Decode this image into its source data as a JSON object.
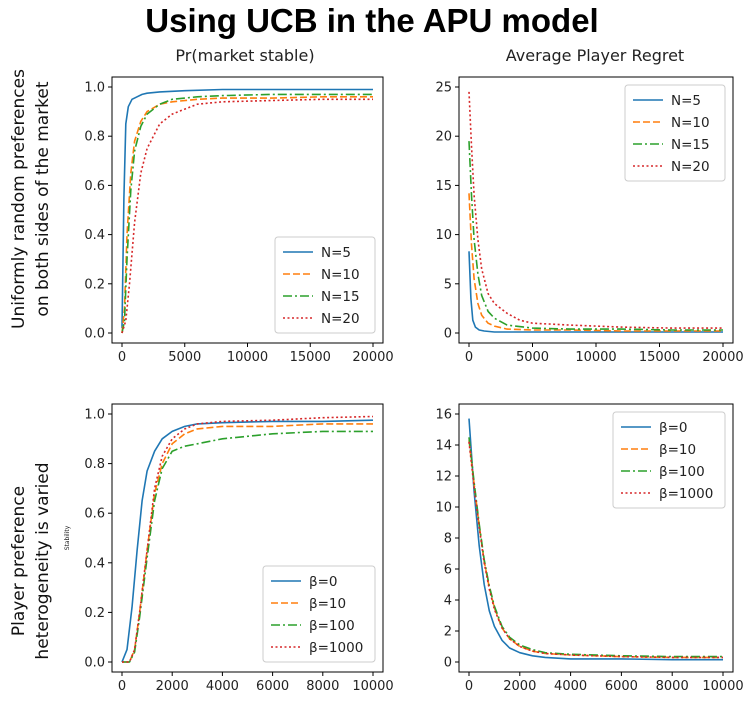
{
  "title": "Using UCB in the APU model",
  "columns": [
    "Pr(market stable)",
    "Average Player Regret"
  ],
  "rows": [
    {
      "line1": "Uniformly random preferences",
      "line2": "on both sides of the market"
    },
    {
      "line1": "Player preference",
      "line2": "heterogeneity is varied"
    }
  ],
  "colors": {
    "s1": "#1f77b4",
    "s2": "#ff7f0e",
    "s3": "#2ca02c",
    "s4": "#d62728"
  },
  "chart_data": [
    {
      "type": "line",
      "title": "Pr(market stable)",
      "xlabel": "",
      "ylabel": "",
      "xlim": [
        0,
        20000
      ],
      "ylim": [
        0,
        1
      ],
      "xticks": [
        "0",
        "5000",
        "10000",
        "15000",
        "20000"
      ],
      "yticks": [
        "0.0",
        "0.2",
        "0.4",
        "0.6",
        "0.8",
        "1.0"
      ],
      "legend_position": "bottom-right",
      "series": [
        {
          "name": "N=5",
          "x": [
            0,
            150,
            300,
            500,
            800,
            1200,
            1600,
            2000,
            3000,
            5000,
            8000,
            12000,
            16000,
            20000
          ],
          "values": [
            0.02,
            0.55,
            0.85,
            0.92,
            0.95,
            0.96,
            0.97,
            0.975,
            0.98,
            0.985,
            0.99,
            0.99,
            0.99,
            0.99
          ]
        },
        {
          "name": "N=10",
          "x": [
            0,
            200,
            400,
            700,
            1000,
            1500,
            2000,
            3000,
            4000,
            6000,
            8000,
            12000,
            16000,
            20000
          ],
          "values": [
            0.0,
            0.1,
            0.4,
            0.65,
            0.78,
            0.86,
            0.9,
            0.93,
            0.94,
            0.95,
            0.955,
            0.955,
            0.96,
            0.96
          ]
        },
        {
          "name": "N=15",
          "x": [
            0,
            200,
            400,
            700,
            1000,
            1500,
            2000,
            3000,
            4000,
            6000,
            8000,
            12000,
            16000,
            20000
          ],
          "values": [
            0.0,
            0.05,
            0.3,
            0.58,
            0.74,
            0.84,
            0.89,
            0.93,
            0.95,
            0.96,
            0.965,
            0.97,
            0.97,
            0.97
          ]
        },
        {
          "name": "N=20",
          "x": [
            0,
            300,
            600,
            1000,
            1500,
            2000,
            3000,
            4000,
            5000,
            6000,
            8000,
            12000,
            16000,
            20000
          ],
          "values": [
            0.0,
            0.05,
            0.2,
            0.45,
            0.65,
            0.75,
            0.85,
            0.89,
            0.91,
            0.93,
            0.94,
            0.945,
            0.95,
            0.95
          ]
        }
      ]
    },
    {
      "type": "line",
      "title": "Average Player Regret",
      "xlabel": "",
      "ylabel": "",
      "xlim": [
        0,
        20000
      ],
      "ylim": [
        0,
        25
      ],
      "xticks": [
        "0",
        "5000",
        "10000",
        "15000",
        "20000"
      ],
      "yticks": [
        "0",
        "5",
        "10",
        "15",
        "20",
        "25"
      ],
      "legend_position": "top-right",
      "series": [
        {
          "name": "N=5",
          "x": [
            0,
            150,
            300,
            500,
            800,
            1200,
            2000,
            4000,
            8000,
            12000,
            16000,
            20000
          ],
          "values": [
            8.3,
            3.5,
            1.3,
            0.6,
            0.3,
            0.2,
            0.1,
            0.1,
            0.1,
            0.1,
            0.1,
            0.1
          ]
        },
        {
          "name": "N=10",
          "x": [
            0,
            200,
            400,
            700,
            1000,
            1500,
            2000,
            3000,
            5000,
            8000,
            12000,
            16000,
            20000
          ],
          "values": [
            14.2,
            9.0,
            5.5,
            3.0,
            1.8,
            1.0,
            0.7,
            0.4,
            0.3,
            0.3,
            0.2,
            0.2,
            0.2
          ]
        },
        {
          "name": "N=15",
          "x": [
            0,
            200,
            400,
            700,
            1000,
            1500,
            2000,
            3000,
            5000,
            8000,
            12000,
            16000,
            20000
          ],
          "values": [
            19.5,
            14.0,
            9.5,
            6.0,
            3.8,
            2.2,
            1.5,
            0.8,
            0.5,
            0.4,
            0.4,
            0.3,
            0.3
          ]
        },
        {
          "name": "N=20",
          "x": [
            0,
            200,
            400,
            700,
            1000,
            1500,
            2000,
            3000,
            4000,
            5000,
            8000,
            12000,
            16000,
            20000
          ],
          "values": [
            24.5,
            19.0,
            14.0,
            9.5,
            6.5,
            4.0,
            3.0,
            2.0,
            1.3,
            1.0,
            0.8,
            0.6,
            0.5,
            0.5
          ]
        }
      ]
    },
    {
      "type": "line",
      "title": "",
      "xlabel": "",
      "ylabel": "Stability",
      "xlim": [
        0,
        10000
      ],
      "ylim": [
        0,
        1
      ],
      "xticks": [
        "0",
        "2000",
        "4000",
        "6000",
        "8000",
        "10000"
      ],
      "yticks": [
        "0.0",
        "0.2",
        "0.4",
        "0.6",
        "0.8",
        "1.0"
      ],
      "legend_position": "bottom-right",
      "series": [
        {
          "name": "β=0",
          "x": [
            0,
            200,
            400,
            600,
            800,
            1000,
            1300,
            1600,
            2000,
            2500,
            3000,
            4000,
            6000,
            8000,
            10000
          ],
          "values": [
            0.0,
            0.05,
            0.22,
            0.45,
            0.65,
            0.77,
            0.85,
            0.9,
            0.93,
            0.95,
            0.96,
            0.965,
            0.97,
            0.97,
            0.975
          ]
        },
        {
          "name": "β=10",
          "x": [
            0,
            300,
            500,
            700,
            1000,
            1300,
            1600,
            2000,
            2500,
            3000,
            4000,
            6000,
            8000,
            10000
          ],
          "values": [
            0.0,
            0.0,
            0.05,
            0.2,
            0.45,
            0.68,
            0.8,
            0.88,
            0.92,
            0.94,
            0.95,
            0.95,
            0.96,
            0.96
          ]
        },
        {
          "name": "β=100",
          "x": [
            0,
            300,
            500,
            700,
            1000,
            1300,
            1600,
            2000,
            2500,
            3000,
            4000,
            6000,
            8000,
            10000
          ],
          "values": [
            0.0,
            0.0,
            0.04,
            0.18,
            0.42,
            0.65,
            0.78,
            0.85,
            0.87,
            0.88,
            0.9,
            0.92,
            0.93,
            0.93
          ]
        },
        {
          "name": "β=1000",
          "x": [
            0,
            300,
            500,
            700,
            1000,
            1300,
            1600,
            2000,
            2500,
            3000,
            4000,
            6000,
            8000,
            10000
          ],
          "values": [
            0.0,
            0.0,
            0.05,
            0.2,
            0.45,
            0.7,
            0.83,
            0.9,
            0.94,
            0.96,
            0.97,
            0.975,
            0.985,
            0.99
          ]
        }
      ]
    },
    {
      "type": "line",
      "title": "",
      "xlabel": "",
      "ylabel": "",
      "xlim": [
        0,
        10000
      ],
      "ylim": [
        0,
        16
      ],
      "xticks": [
        "0",
        "2000",
        "4000",
        "6000",
        "8000",
        "10000"
      ],
      "yticks": [
        "0",
        "2",
        "4",
        "6",
        "8",
        "10",
        "12",
        "14",
        "16"
      ],
      "legend_position": "top-right",
      "series": [
        {
          "name": "β=0",
          "x": [
            0,
            200,
            400,
            600,
            800,
            1000,
            1300,
            1600,
            2000,
            2500,
            3000,
            4000,
            6000,
            8000,
            10000
          ],
          "values": [
            15.7,
            11.0,
            7.5,
            5.0,
            3.3,
            2.3,
            1.4,
            0.9,
            0.6,
            0.4,
            0.3,
            0.2,
            0.2,
            0.15,
            0.15
          ]
        },
        {
          "name": "β=10",
          "x": [
            0,
            200,
            400,
            600,
            800,
            1000,
            1300,
            1600,
            2000,
            2500,
            3000,
            4000,
            6000,
            8000,
            10000
          ],
          "values": [
            14.3,
            11.5,
            8.8,
            6.5,
            4.8,
            3.5,
            2.2,
            1.5,
            1.0,
            0.7,
            0.55,
            0.45,
            0.35,
            0.3,
            0.3
          ]
        },
        {
          "name": "β=100",
          "x": [
            0,
            200,
            400,
            600,
            800,
            1000,
            1300,
            1600,
            2000,
            2500,
            3000,
            4000,
            6000,
            8000,
            10000
          ],
          "values": [
            14.5,
            11.6,
            8.9,
            6.6,
            4.9,
            3.6,
            2.3,
            1.6,
            1.1,
            0.8,
            0.6,
            0.5,
            0.4,
            0.35,
            0.35
          ]
        },
        {
          "name": "β=1000",
          "x": [
            0,
            200,
            400,
            600,
            800,
            1000,
            1300,
            1600,
            2000,
            2500,
            3000,
            4000,
            6000,
            8000,
            10000
          ],
          "values": [
            14.2,
            11.3,
            8.7,
            6.4,
            4.7,
            3.4,
            2.2,
            1.5,
            1.0,
            0.7,
            0.55,
            0.45,
            0.35,
            0.3,
            0.3
          ]
        }
      ]
    }
  ]
}
